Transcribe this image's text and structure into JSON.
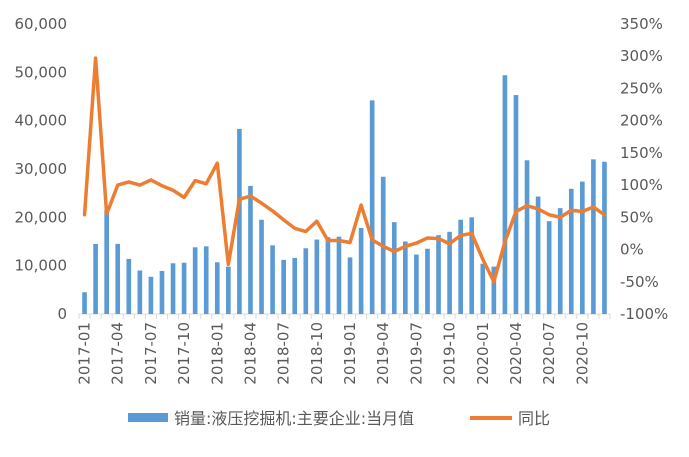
{
  "chart_data": {
    "type": "bar+line",
    "categories": [
      "2017-01",
      "2017-02",
      "2017-03",
      "2017-04",
      "2017-05",
      "2017-06",
      "2017-07",
      "2017-08",
      "2017-09",
      "2017-10",
      "2017-11",
      "2017-12",
      "2018-01",
      "2018-02",
      "2018-03",
      "2018-04",
      "2018-05",
      "2018-06",
      "2018-07",
      "2018-08",
      "2018-09",
      "2018-10",
      "2018-11",
      "2018-12",
      "2019-01",
      "2019-02",
      "2019-03",
      "2019-04",
      "2019-05",
      "2019-06",
      "2019-07",
      "2019-08",
      "2019-09",
      "2019-10",
      "2019-11",
      "2019-12",
      "2020-01",
      "2020-02",
      "2020-03",
      "2020-04",
      "2020-05",
      "2020-06",
      "2020-07",
      "2020-08",
      "2020-09",
      "2020-10",
      "2020-11",
      "2020-12"
    ],
    "x_tick_labels": [
      "2017-01",
      "2017-04",
      "2017-07",
      "2017-10",
      "2018-01",
      "2018-04",
      "2018-07",
      "2018-10",
      "2019-01",
      "2019-04",
      "2019-07",
      "2019-10",
      "2020-01",
      "2020-04",
      "2020-07",
      "2020-10"
    ],
    "series": [
      {
        "name": "销量:液压挖掘机:主要企业:当月值",
        "type": "bar",
        "axis": "left",
        "color": "#5B9BD5",
        "values": [
          4500,
          14500,
          21500,
          14500,
          11400,
          9000,
          7700,
          8900,
          10500,
          10600,
          13800,
          14000,
          10700,
          9800,
          38300,
          26500,
          19500,
          14200,
          11200,
          11600,
          13600,
          15400,
          15900,
          16000,
          11700,
          17800,
          44200,
          28400,
          19000,
          15000,
          12300,
          13500,
          16300,
          17000,
          19500,
          20000,
          10400,
          9800,
          49400,
          45300,
          31800,
          24300,
          19200,
          21900,
          25900,
          27400,
          32000,
          31500
        ]
      },
      {
        "name": "同比",
        "type": "line",
        "axis": "right",
        "color": "#ED7D31",
        "values": [
          0.54,
          2.97,
          0.55,
          1.0,
          1.05,
          1.0,
          1.08,
          0.99,
          0.92,
          0.81,
          1.07,
          1.02,
          1.34,
          -0.23,
          0.78,
          0.83,
          0.72,
          0.6,
          0.46,
          0.33,
          0.28,
          0.44,
          0.14,
          0.14,
          0.11,
          0.69,
          0.15,
          0.05,
          -0.03,
          0.05,
          0.1,
          0.18,
          0.17,
          0.09,
          0.22,
          0.25,
          -0.15,
          -0.5,
          0.12,
          0.59,
          0.68,
          0.63,
          0.54,
          0.5,
          0.61,
          0.59,
          0.66,
          0.54
        ]
      }
    ],
    "y_left": {
      "lim": [
        0,
        60000
      ],
      "ticks": [
        0,
        10000,
        20000,
        30000,
        40000,
        50000,
        60000
      ],
      "tick_labels": [
        "0",
        "10,000",
        "20,000",
        "30,000",
        "40,000",
        "50,000",
        "60,000"
      ]
    },
    "y_right": {
      "lim": [
        -1.0,
        3.5
      ],
      "ticks": [
        -1.0,
        -0.5,
        0.0,
        0.5,
        1.0,
        1.5,
        2.0,
        2.5,
        3.0,
        3.5
      ],
      "tick_labels": [
        "-100%",
        "-50%",
        "0%",
        "50%",
        "100%",
        "150%",
        "200%",
        "250%",
        "300%",
        "350%"
      ]
    },
    "grid": false,
    "legend_position": "bottom",
    "title": "",
    "xlabel": "",
    "ylabel": ""
  }
}
